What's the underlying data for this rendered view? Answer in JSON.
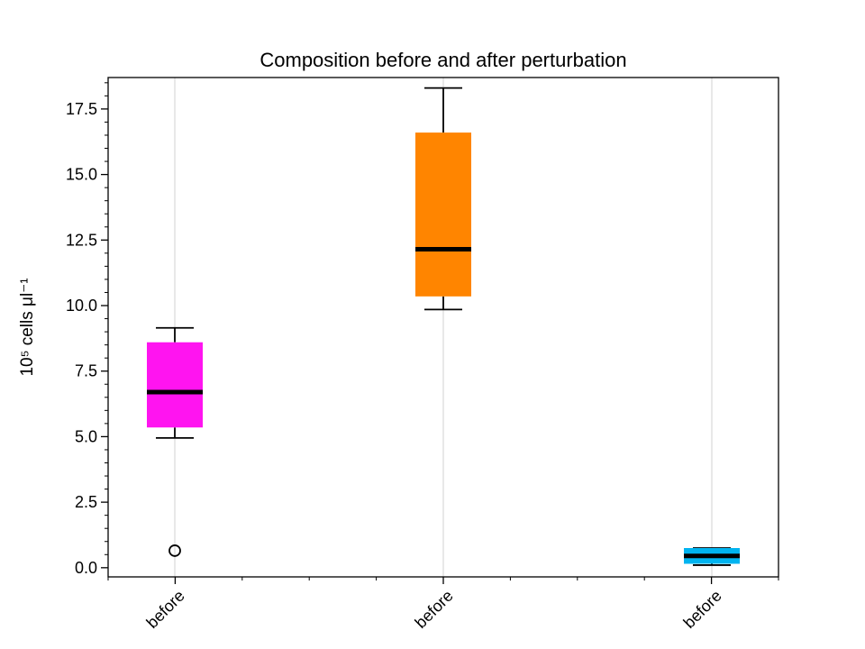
{
  "chart_data": {
    "type": "box",
    "title": "Composition before and after perturbation",
    "xlabel": "",
    "ylabel": "10⁵ cells μl⁻¹",
    "ylim": [
      -0.35,
      18.7
    ],
    "yticks": [
      "0.0",
      "2.5",
      "5.0",
      "7.5",
      "10.0",
      "12.5",
      "15.0",
      "17.5"
    ],
    "grid": "x-major",
    "categories": [
      "before",
      "before",
      "before"
    ],
    "boxes": [
      {
        "category": "before",
        "color": "#ff14f0",
        "whisker_low": 4.95,
        "q1": 5.35,
        "median": 6.7,
        "q3": 8.6,
        "whisker_high": 9.15,
        "outliers": [
          0.65
        ]
      },
      {
        "category": "before",
        "color": "#ff8500",
        "whisker_low": 9.85,
        "q1": 10.35,
        "median": 12.15,
        "q3": 16.6,
        "whisker_high": 18.3,
        "outliers": []
      },
      {
        "category": "before",
        "color": "#00b4f0",
        "whisker_low": 0.1,
        "q1": 0.15,
        "median": 0.45,
        "q3": 0.75,
        "whisker_high": 0.75,
        "outliers": []
      }
    ]
  }
}
